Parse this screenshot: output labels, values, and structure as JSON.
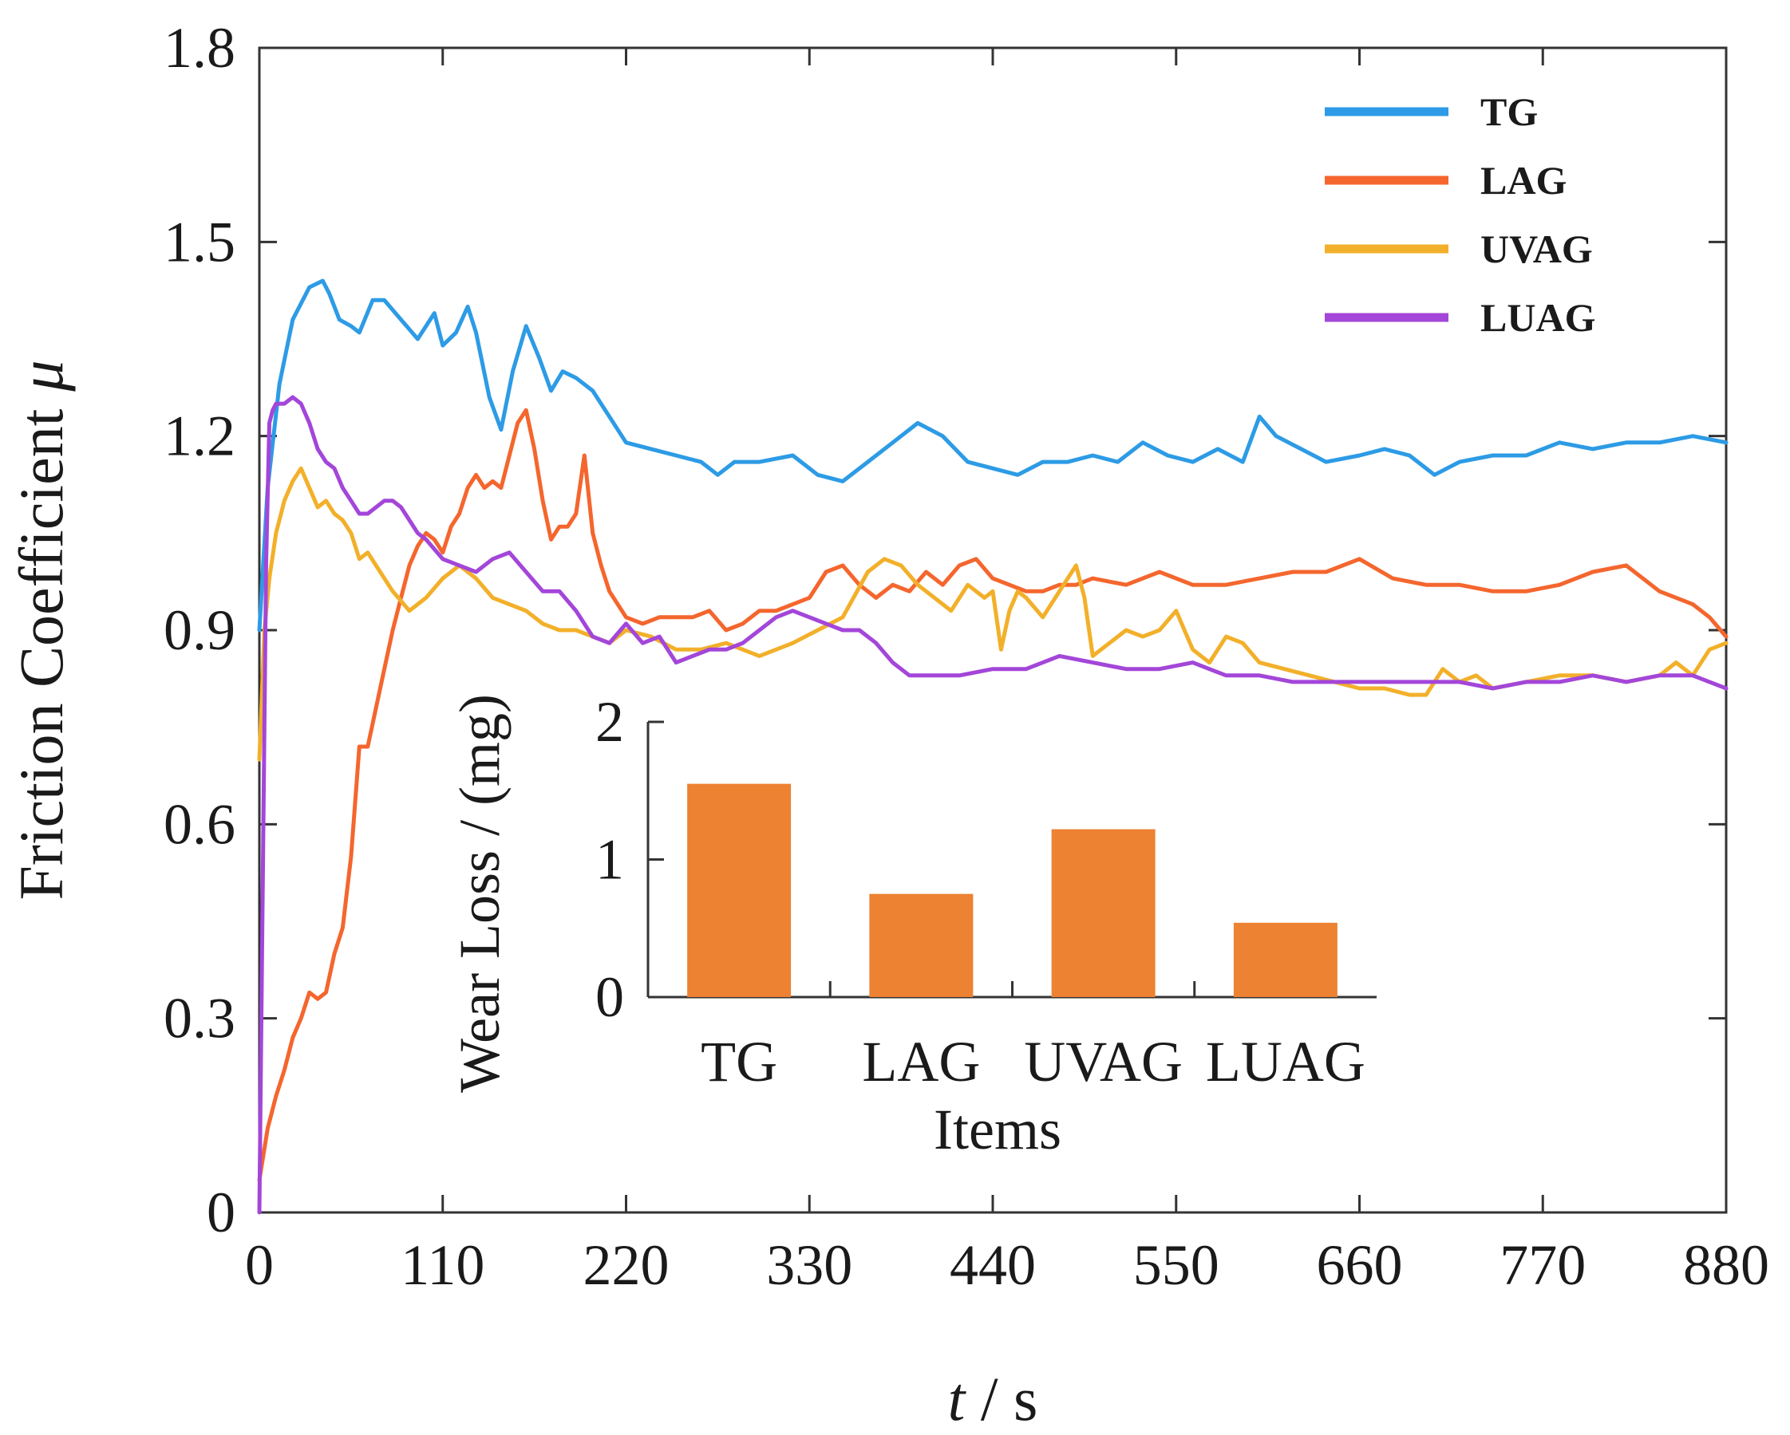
{
  "chart_data": [
    {
      "type": "line",
      "xlabel_italic": "t",
      "xlabel_unit": " / s",
      "ylabel": "Friction Coefficient",
      "ylabel_symbol": "μ",
      "xlim": [
        0,
        880
      ],
      "ylim": [
        0,
        1.8
      ],
      "xticks": [
        0,
        110,
        220,
        330,
        440,
        550,
        660,
        770,
        880
      ],
      "yticks": [
        0,
        0.3,
        0.6,
        0.9,
        1.2,
        1.5,
        1.8
      ],
      "xtick_labels": [
        "0",
        "110",
        "220",
        "330",
        "440",
        "550",
        "660",
        "770",
        "880"
      ],
      "ytick_labels": [
        "0",
        "0.3",
        "0.6",
        "0.9",
        "1.2",
        "1.5",
        "1.8"
      ],
      "legend": [
        "TG",
        "LAG",
        "UVAG",
        "LUAG"
      ],
      "legend_position": "top-right",
      "series": [
        {
          "name": "TG",
          "color": "#2d9be5",
          "x": [
            0,
            5,
            12,
            20,
            30,
            38,
            42,
            48,
            55,
            60,
            68,
            75,
            85,
            95,
            105,
            110,
            118,
            125,
            130,
            138,
            145,
            152,
            160,
            168,
            175,
            182,
            190,
            200,
            210,
            220,
            235,
            250,
            265,
            275,
            285,
            300,
            320,
            335,
            350,
            365,
            380,
            395,
            410,
            425,
            440,
            455,
            470,
            485,
            500,
            515,
            530,
            545,
            560,
            575,
            590,
            600,
            610,
            625,
            640,
            660,
            675,
            690,
            705,
            720,
            740,
            760,
            780,
            800,
            820,
            840,
            860,
            880
          ],
          "values": [
            0.9,
            1.12,
            1.28,
            1.38,
            1.43,
            1.44,
            1.42,
            1.38,
            1.37,
            1.36,
            1.41,
            1.41,
            1.38,
            1.35,
            1.39,
            1.34,
            1.36,
            1.4,
            1.36,
            1.26,
            1.21,
            1.3,
            1.37,
            1.32,
            1.27,
            1.3,
            1.29,
            1.27,
            1.23,
            1.19,
            1.18,
            1.17,
            1.16,
            1.14,
            1.16,
            1.16,
            1.17,
            1.14,
            1.13,
            1.16,
            1.19,
            1.22,
            1.2,
            1.16,
            1.15,
            1.14,
            1.16,
            1.16,
            1.17,
            1.16,
            1.19,
            1.17,
            1.16,
            1.18,
            1.16,
            1.23,
            1.2,
            1.18,
            1.16,
            1.17,
            1.18,
            1.17,
            1.14,
            1.16,
            1.17,
            1.17,
            1.19,
            1.18,
            1.19,
            1.19,
            1.2,
            1.19
          ]
        },
        {
          "name": "LAG",
          "color": "#f4662e",
          "x": [
            0,
            5,
            10,
            15,
            20,
            25,
            30,
            35,
            40,
            45,
            50,
            55,
            60,
            65,
            70,
            75,
            80,
            85,
            90,
            95,
            100,
            105,
            110,
            115,
            120,
            125,
            130,
            135,
            140,
            145,
            150,
            155,
            160,
            165,
            170,
            175,
            180,
            185,
            190,
            195,
            200,
            205,
            210,
            215,
            220,
            230,
            240,
            250,
            260,
            270,
            280,
            290,
            300,
            310,
            320,
            330,
            340,
            350,
            360,
            370,
            380,
            390,
            400,
            410,
            420,
            430,
            440,
            450,
            460,
            470,
            480,
            490,
            500,
            520,
            540,
            560,
            580,
            600,
            620,
            640,
            660,
            680,
            700,
            720,
            740,
            760,
            780,
            800,
            820,
            840,
            860,
            870,
            880
          ],
          "values": [
            0.05,
            0.13,
            0.18,
            0.22,
            0.27,
            0.3,
            0.34,
            0.33,
            0.34,
            0.4,
            0.44,
            0.55,
            0.72,
            0.72,
            0.78,
            0.84,
            0.9,
            0.95,
            1.0,
            1.03,
            1.05,
            1.04,
            1.02,
            1.06,
            1.08,
            1.12,
            1.14,
            1.12,
            1.13,
            1.12,
            1.17,
            1.22,
            1.24,
            1.18,
            1.1,
            1.04,
            1.06,
            1.06,
            1.08,
            1.17,
            1.05,
            1.0,
            0.96,
            0.94,
            0.92,
            0.91,
            0.92,
            0.92,
            0.92,
            0.93,
            0.9,
            0.91,
            0.93,
            0.93,
            0.94,
            0.95,
            0.99,
            1.0,
            0.97,
            0.95,
            0.97,
            0.96,
            0.99,
            0.97,
            1.0,
            1.01,
            0.98,
            0.97,
            0.96,
            0.96,
            0.97,
            0.97,
            0.98,
            0.97,
            0.99,
            0.97,
            0.97,
            0.98,
            0.99,
            0.99,
            1.01,
            0.98,
            0.97,
            0.97,
            0.96,
            0.96,
            0.97,
            0.99,
            1.0,
            0.96,
            0.94,
            0.92,
            0.89
          ]
        },
        {
          "name": "UVAG",
          "color": "#f2b02a",
          "x": [
            0,
            3,
            6,
            10,
            15,
            20,
            25,
            30,
            35,
            40,
            45,
            50,
            55,
            60,
            65,
            70,
            80,
            90,
            100,
            110,
            120,
            130,
            140,
            150,
            160,
            170,
            180,
            190,
            200,
            210,
            220,
            235,
            250,
            265,
            280,
            300,
            320,
            335,
            350,
            365,
            375,
            385,
            395,
            405,
            415,
            425,
            435,
            440,
            445,
            450,
            455,
            460,
            470,
            480,
            490,
            495,
            500,
            510,
            520,
            530,
            540,
            550,
            560,
            570,
            580,
            590,
            600,
            615,
            630,
            645,
            660,
            675,
            690,
            700,
            710,
            720,
            730,
            740,
            760,
            780,
            800,
            820,
            840,
            850,
            860,
            870,
            880
          ],
          "values": [
            0.7,
            0.9,
            0.98,
            1.05,
            1.1,
            1.13,
            1.15,
            1.12,
            1.09,
            1.1,
            1.08,
            1.07,
            1.05,
            1.01,
            1.02,
            1.0,
            0.96,
            0.93,
            0.95,
            0.98,
            1.0,
            0.98,
            0.95,
            0.94,
            0.93,
            0.91,
            0.9,
            0.9,
            0.89,
            0.88,
            0.9,
            0.89,
            0.87,
            0.87,
            0.88,
            0.86,
            0.88,
            0.9,
            0.92,
            0.99,
            1.01,
            1.0,
            0.97,
            0.95,
            0.93,
            0.97,
            0.95,
            0.96,
            0.87,
            0.93,
            0.96,
            0.95,
            0.92,
            0.96,
            1.0,
            0.95,
            0.86,
            0.88,
            0.9,
            0.89,
            0.9,
            0.93,
            0.87,
            0.85,
            0.89,
            0.88,
            0.85,
            0.84,
            0.83,
            0.82,
            0.81,
            0.81,
            0.8,
            0.8,
            0.84,
            0.82,
            0.83,
            0.81,
            0.82,
            0.83,
            0.83,
            0.82,
            0.83,
            0.85,
            0.83,
            0.87,
            0.88
          ]
        },
        {
          "name": "LUAG",
          "color": "#a346d9",
          "x": [
            0,
            2,
            4,
            6,
            8,
            10,
            15,
            20,
            25,
            30,
            35,
            40,
            45,
            50,
            55,
            60,
            65,
            70,
            75,
            80,
            85,
            90,
            95,
            100,
            110,
            120,
            130,
            140,
            150,
            160,
            170,
            180,
            190,
            200,
            210,
            220,
            230,
            240,
            250,
            260,
            270,
            280,
            290,
            300,
            310,
            320,
            330,
            340,
            350,
            360,
            370,
            380,
            390,
            400,
            420,
            440,
            460,
            480,
            500,
            520,
            540,
            560,
            580,
            600,
            620,
            640,
            660,
            680,
            700,
            720,
            740,
            760,
            780,
            800,
            820,
            840,
            860,
            870,
            880
          ],
          "values": [
            0.0,
            0.5,
            1.0,
            1.22,
            1.24,
            1.25,
            1.25,
            1.26,
            1.25,
            1.22,
            1.18,
            1.16,
            1.15,
            1.12,
            1.1,
            1.08,
            1.08,
            1.09,
            1.1,
            1.1,
            1.09,
            1.07,
            1.05,
            1.04,
            1.01,
            1.0,
            0.99,
            1.01,
            1.02,
            0.99,
            0.96,
            0.96,
            0.93,
            0.89,
            0.88,
            0.91,
            0.88,
            0.89,
            0.85,
            0.86,
            0.87,
            0.87,
            0.88,
            0.9,
            0.92,
            0.93,
            0.92,
            0.91,
            0.9,
            0.9,
            0.88,
            0.85,
            0.83,
            0.83,
            0.83,
            0.84,
            0.84,
            0.86,
            0.85,
            0.84,
            0.84,
            0.85,
            0.83,
            0.83,
            0.82,
            0.82,
            0.82,
            0.82,
            0.82,
            0.82,
            0.81,
            0.82,
            0.82,
            0.83,
            0.82,
            0.83,
            0.83,
            0.82,
            0.81
          ]
        }
      ]
    },
    {
      "type": "bar",
      "role": "inset",
      "categories": [
        "TG",
        "LAG",
        "UVAG",
        "LUAG"
      ],
      "values": [
        1.55,
        0.75,
        1.22,
        0.54
      ],
      "ylabel": "Wear Loss / (mg)",
      "xlabel": "Items",
      "ylim": [
        0,
        2
      ],
      "yticks": [
        0,
        1,
        2
      ],
      "ytick_labels": [
        "0",
        "1",
        "2"
      ],
      "bar_color": "#ed8233"
    }
  ]
}
